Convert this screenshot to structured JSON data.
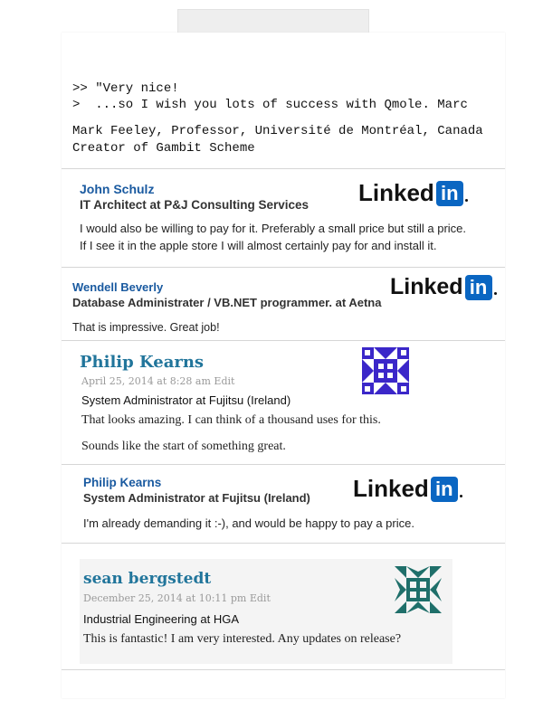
{
  "quote": {
    "line1": ">> \"Very nice!",
    "line2": ">  ...so I wish you lots of success with Qmole. Marc",
    "author": "Mark Feeley, Professor, Université de Montréal, Canada",
    "role": "Creator of Gambit Scheme"
  },
  "linkedin_logo": {
    "word": "Linked",
    "in": "in"
  },
  "comments": [
    {
      "name": "John Schulz",
      "title": "IT Architect at P&J Consulting Services",
      "text1": "I would also be willing to pay for it. Preferably a small price but still a price.",
      "text2": "If I see it in the apple  store I will almost certainly pay for and install it."
    },
    {
      "name": "Wendell Beverly",
      "title": "Database Administrater / VB.NET programmer. at Aetna",
      "text1": "That is impressive. Great job!"
    },
    {
      "name": "Philip Kearns",
      "meta": "April 25, 2014 at 8:28 am Edit",
      "subtitle": "System Administrator at Fujitsu (Ireland)",
      "text1": "That looks amazing. I can think of a thousand uses for this.",
      "text2": "Sounds like the start of something great."
    },
    {
      "name": "Philip Kearns",
      "title": "System Administrator at Fujitsu (Ireland)",
      "text1": "I'm already demanding it :-), and would be happy to pay a price."
    },
    {
      "name": "sean bergstedt",
      "meta": "December 25, 2014 at 10:11 pm Edit",
      "subtitle": "Industrial Engineering at HGA",
      "text1": "This is fantastic! I am very interested. Any updates on release?"
    }
  ],
  "colors": {
    "linkedin_blue": "#0a66c2",
    "name_blue": "#1a5aa0",
    "wp_link": "#21759b",
    "avatar_purple": "#3b27c9",
    "avatar_teal": "#1f6f6a"
  }
}
